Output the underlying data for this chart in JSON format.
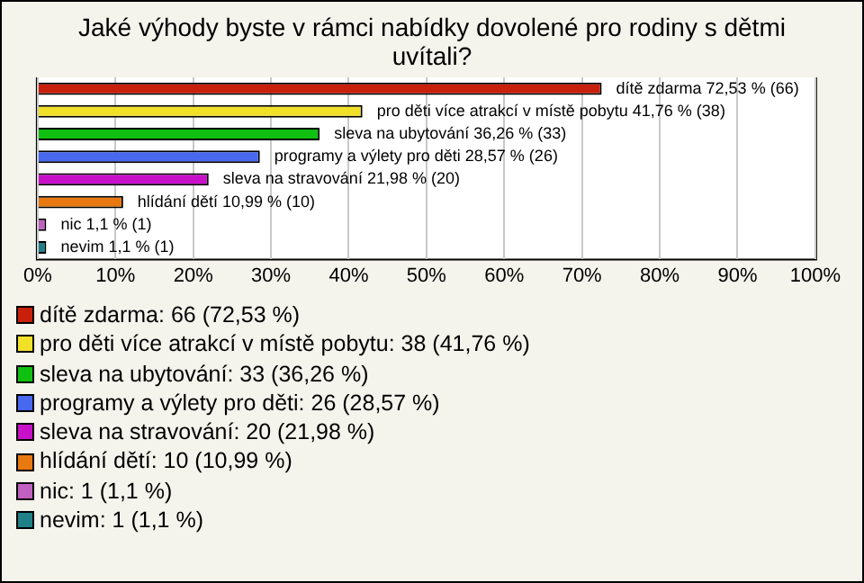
{
  "chart_data": {
    "type": "bar",
    "orientation": "horizontal",
    "title": "Jaké výhody byste v rámci nabídky dovolené pro rodiny s dětmi uvítali?",
    "categories": [
      "dítě zdarma",
      "pro děti více atrakcí v místě pobytu",
      "sleva na ubytování",
      "programy a výlety pro děti",
      "sleva na stravování",
      "hlídání dětí",
      "nic",
      "nevim"
    ],
    "values": [
      72.53,
      41.76,
      36.26,
      28.57,
      21.98,
      10.99,
      1.1,
      1.1
    ],
    "colors": [
      "#c8200c",
      "#f0e028",
      "#10c010",
      "#4868f0",
      "#c810c8",
      "#e87810",
      "#c060c0",
      "#208088"
    ],
    "value_labels": [
      "72,53 % (66)",
      "41,76 % (38)",
      "36,26 % (33)",
      "28,57 % (26)",
      "21,98 % (20)",
      "10,99 % (10)",
      "1,1 % (1)",
      "1,1 % (1)"
    ],
    "xlim": [
      0,
      100
    ],
    "xticks": [
      {
        "value": 0,
        "label": "0%"
      },
      {
        "value": 10,
        "label": "10%"
      },
      {
        "value": 20,
        "label": "20%"
      },
      {
        "value": 30,
        "label": "30%"
      },
      {
        "value": 40,
        "label": "40%"
      },
      {
        "value": 50,
        "label": "50%"
      },
      {
        "value": 60,
        "label": "60%"
      },
      {
        "value": 70,
        "label": "70%"
      },
      {
        "value": 80,
        "label": "80%"
      },
      {
        "value": 90,
        "label": "90%"
      },
      {
        "value": 100,
        "label": "100%"
      }
    ],
    "grid": "x",
    "legend": false,
    "tick_labels": "x",
    "annotations": [
      "dítě zdarma: 66 (72,53 %)",
      "pro děti více atrakcí v místě pobytu: 38 (41,76 %)",
      "sleva na ubytování: 33 (36,26 %)",
      "programy a výlety pro děti: 26 (28,57 %)",
      "sleva na stravování: 20 (21,98 %)",
      "hlídání dětí: 10 (10,99 %)",
      "nic: 1 (1,1 %)",
      "nevim: 1 (1,1 %)"
    ]
  }
}
